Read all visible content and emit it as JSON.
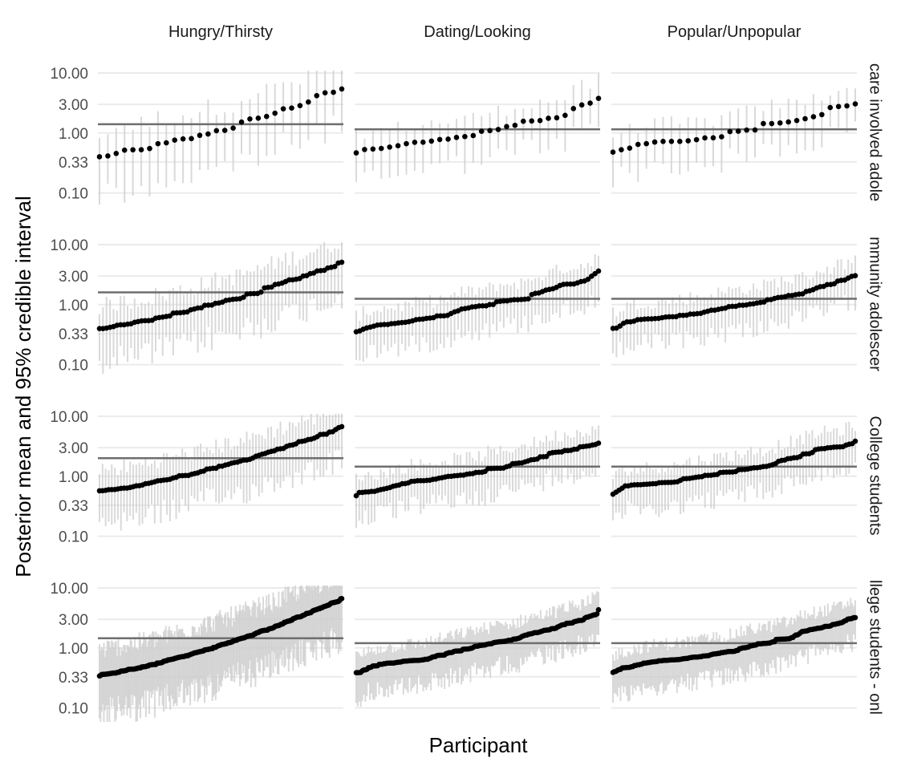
{
  "chart_data": {
    "type": "scatter",
    "ylabel": "Posterior mean and 95% credible interval",
    "xlabel": "Participant",
    "y_scale": "log",
    "yticks": [
      0.1,
      0.33,
      1.0,
      3.0,
      10.0
    ],
    "ytick_labels": [
      "0.10",
      "0.33",
      "1.00",
      "3.00",
      "10.00"
    ],
    "ylim": [
      0.075,
      14
    ],
    "grid": true,
    "legend": "none",
    "columns": [
      "Hungry/Thirsty",
      "Dating/Looking",
      "Popular/Unpopular"
    ],
    "rows": [
      "care involved adole",
      "mmunity adolescer",
      "College students",
      "llege students - onl"
    ],
    "colors": {
      "point": "#000000",
      "interval": "#cccccc",
      "reference_line": "#6e6e6e",
      "gridline": "#ebebeb",
      "tick_text": "#4d4d4d",
      "strip_text": "#1a1a1a"
    },
    "panels": [
      {
        "row": 0,
        "col": 0,
        "n": 30,
        "y_start": 0.4,
        "y_end": 5.5,
        "ref_line": 1.4,
        "noise": 0.05,
        "ci_width": 0.85
      },
      {
        "row": 0,
        "col": 1,
        "n": 30,
        "y_start": 0.48,
        "y_end": 3.0,
        "ref_line": 1.15,
        "noise": 0.1,
        "ci_width": 0.6
      },
      {
        "row": 0,
        "col": 2,
        "n": 30,
        "y_start": 0.55,
        "y_end": 2.8,
        "ref_line": 1.15,
        "noise": 0.12,
        "ci_width": 0.6
      },
      {
        "row": 1,
        "col": 0,
        "n": 70,
        "y_start": 0.4,
        "y_end": 5.0,
        "ref_line": 1.6,
        "noise": 0.03,
        "ci_width": 0.75
      },
      {
        "row": 1,
        "col": 1,
        "n": 70,
        "y_start": 0.42,
        "y_end": 2.9,
        "ref_line": 1.25,
        "noise": 0.12,
        "ci_width": 0.55
      },
      {
        "row": 1,
        "col": 2,
        "n": 70,
        "y_start": 0.48,
        "y_end": 2.8,
        "ref_line": 1.25,
        "noise": 0.14,
        "ci_width": 0.55
      },
      {
        "row": 2,
        "col": 0,
        "n": 80,
        "y_start": 0.55,
        "y_end": 6.5,
        "ref_line": 2.0,
        "noise": 0.02,
        "ci_width": 0.7
      },
      {
        "row": 2,
        "col": 1,
        "n": 80,
        "y_start": 0.6,
        "y_end": 3.5,
        "ref_line": 1.45,
        "noise": 0.12,
        "ci_width": 0.55
      },
      {
        "row": 2,
        "col": 2,
        "n": 80,
        "y_start": 0.6,
        "y_end": 3.5,
        "ref_line": 1.45,
        "noise": 0.12,
        "ci_width": 0.55
      },
      {
        "row": 3,
        "col": 0,
        "n": 220,
        "y_start": 0.35,
        "y_end": 6.5,
        "ref_line": 1.45,
        "noise": 0.02,
        "ci_width": 0.85
      },
      {
        "row": 3,
        "col": 1,
        "n": 160,
        "y_start": 0.45,
        "y_end": 3.5,
        "ref_line": 1.2,
        "noise": 0.1,
        "ci_width": 0.55
      },
      {
        "row": 3,
        "col": 2,
        "n": 160,
        "y_start": 0.45,
        "y_end": 3.0,
        "ref_line": 1.2,
        "noise": 0.1,
        "ci_width": 0.55
      }
    ]
  }
}
